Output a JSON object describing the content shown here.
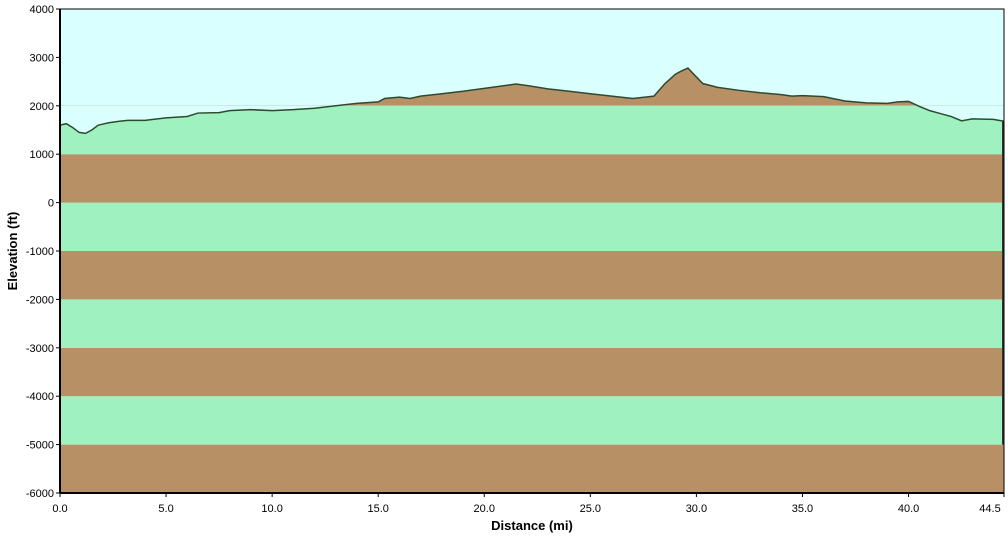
{
  "chart_data": {
    "type": "area",
    "title": "",
    "xlabel": "Distance   (mi)",
    "ylabel": "Elevation (ft)",
    "xlim": [
      0,
      44.5
    ],
    "ylim": [
      -6000,
      4000
    ],
    "x_ticks": [
      "0.0",
      "5.0",
      "10.0",
      "15.0",
      "20.0",
      "25.0",
      "30.0",
      "35.0",
      "40.0",
      "44.5"
    ],
    "x_tick_values": [
      0,
      5,
      10,
      15,
      20,
      25,
      30,
      35,
      40,
      44.5
    ],
    "y_ticks": [
      "4000",
      "3000",
      "2000",
      "1000",
      "0",
      "-1000",
      "-2000",
      "-3000",
      "-4000",
      "-5000",
      "-6000"
    ],
    "y_tick_values": [
      4000,
      3000,
      2000,
      1000,
      0,
      -1000,
      -2000,
      -3000,
      -4000,
      -5000,
      -6000
    ],
    "grid": false,
    "colors": {
      "sky": "#d9ffff",
      "terrain": "#b89066",
      "stripe_green": "#9ff2c0",
      "stripe_brown": "#b89066",
      "profile_line": "#2e4a2e"
    },
    "series": [
      {
        "x": [
          0,
          0.3,
          0.6,
          0.9,
          1.2,
          1.5,
          1.8,
          2.0,
          2.3,
          2.8,
          3.2,
          4.0,
          5.0,
          6.0,
          6.5,
          7.5,
          8.0,
          9.0,
          10.0,
          11.0,
          12.0,
          13.0,
          14.0,
          15.0,
          15.3,
          16.0,
          16.5,
          17.0,
          18.0,
          19.0,
          20.0,
          21.0,
          21.5,
          22.0,
          23.0,
          24.0,
          25.0,
          26.0,
          27.0,
          28.0,
          28.5,
          29.0,
          29.3,
          29.6,
          29.9,
          30.3,
          31.0,
          32.0,
          33.0,
          34.0,
          34.5,
          35.0,
          36.0,
          37.0,
          38.0,
          39.0,
          39.5,
          40.0,
          40.5,
          41.0,
          41.5,
          42.0,
          42.5,
          43.0,
          44.0,
          44.5
        ],
        "values": [
          1600,
          1630,
          1550,
          1450,
          1430,
          1500,
          1600,
          1620,
          1650,
          1680,
          1700,
          1700,
          1750,
          1780,
          1850,
          1860,
          1900,
          1920,
          1900,
          1920,
          1950,
          2000,
          2050,
          2080,
          2150,
          2180,
          2150,
          2200,
          2250,
          2300,
          2360,
          2420,
          2450,
          2420,
          2350,
          2300,
          2250,
          2200,
          2150,
          2200,
          2450,
          2650,
          2720,
          2780,
          2640,
          2460,
          2380,
          2320,
          2270,
          2230,
          2200,
          2210,
          2190,
          2100,
          2060,
          2050,
          2080,
          2090,
          1990,
          1900,
          1840,
          1780,
          1690,
          1730,
          1720,
          1680
        ]
      }
    ]
  }
}
